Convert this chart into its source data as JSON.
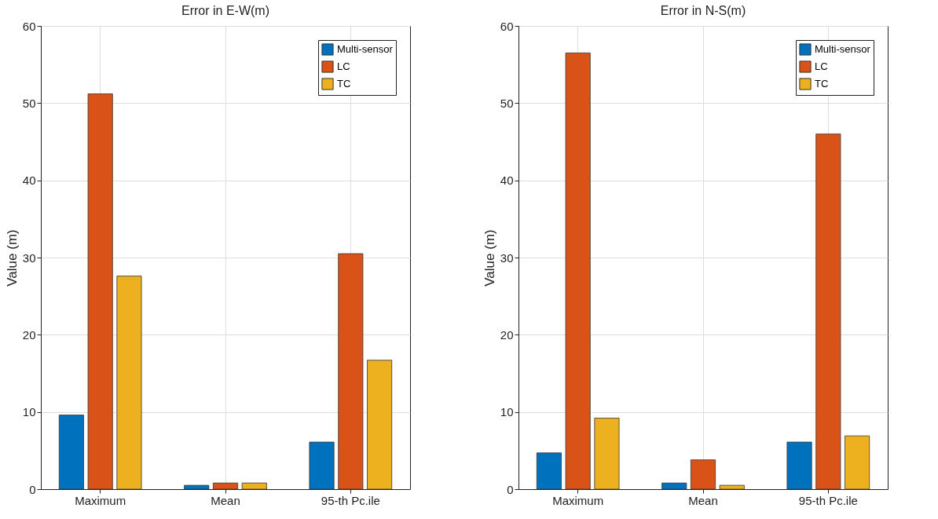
{
  "chart_data": [
    {
      "type": "bar",
      "title": "Error in E-W(m)",
      "ylabel": "Value (m)",
      "categories": [
        "Maximum",
        "Mean",
        "95-th Pc.ile"
      ],
      "series": [
        {
          "name": "Multi-sensor",
          "color": "#0072bd",
          "values": [
            9.6,
            0.5,
            6.1
          ]
        },
        {
          "name": "LC",
          "color": "#d95319",
          "values": [
            51.2,
            0.8,
            30.5
          ]
        },
        {
          "name": "TC",
          "color": "#edb120",
          "values": [
            27.6,
            0.8,
            16.7
          ]
        }
      ],
      "ylim": [
        0,
        60
      ],
      "yticks": [
        0,
        10,
        20,
        30,
        40,
        50,
        60
      ],
      "grid": true,
      "legend": "top right"
    },
    {
      "type": "bar",
      "title": "Error in N-S(m)",
      "ylabel": "Value (m)",
      "categories": [
        "Maximum",
        "Mean",
        "95-th Pc.ile"
      ],
      "series": [
        {
          "name": "Multi-sensor",
          "color": "#0072bd",
          "values": [
            4.7,
            0.8,
            6.1
          ]
        },
        {
          "name": "LC",
          "color": "#d95319",
          "values": [
            56.5,
            3.8,
            46.0
          ]
        },
        {
          "name": "TC",
          "color": "#edb120",
          "values": [
            9.2,
            0.5,
            6.9
          ]
        }
      ],
      "ylim": [
        0,
        60
      ],
      "yticks": [
        0,
        10,
        20,
        30,
        40,
        50,
        60
      ],
      "grid": true,
      "legend": "top right"
    }
  ]
}
